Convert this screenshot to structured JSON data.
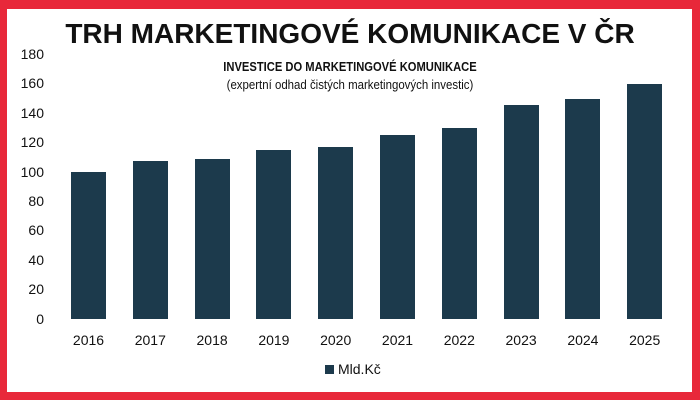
{
  "page": {
    "border_color": "#e8283a",
    "background": "#ffffff"
  },
  "chart_data": {
    "type": "bar",
    "title": "TRH MARKETINGOVÉ KOMUNIKACE V ČR",
    "subtitle": "INVESTICE DO MARKETINGOVÉ KOMUNIKACE",
    "subtitle2": "(expertní odhad čistých marketingových investic)",
    "categories": [
      "2016",
      "2017",
      "2018",
      "2019",
      "2020",
      "2021",
      "2022",
      "2023",
      "2024",
      "2025"
    ],
    "series": [
      {
        "name": "Mld.Kč",
        "color": "#1c3a4c",
        "values": [
          100,
          107.5,
          109,
          115,
          117,
          125,
          130,
          145.5,
          150,
          160
        ]
      }
    ],
    "xlabel": "",
    "ylabel": "",
    "ylim": [
      0,
      180
    ],
    "yticks": [
      "180",
      "160",
      "140",
      "120",
      "100",
      "80",
      "60",
      "40",
      "20",
      "0"
    ],
    "grid": false,
    "legend_position": "bottom"
  }
}
